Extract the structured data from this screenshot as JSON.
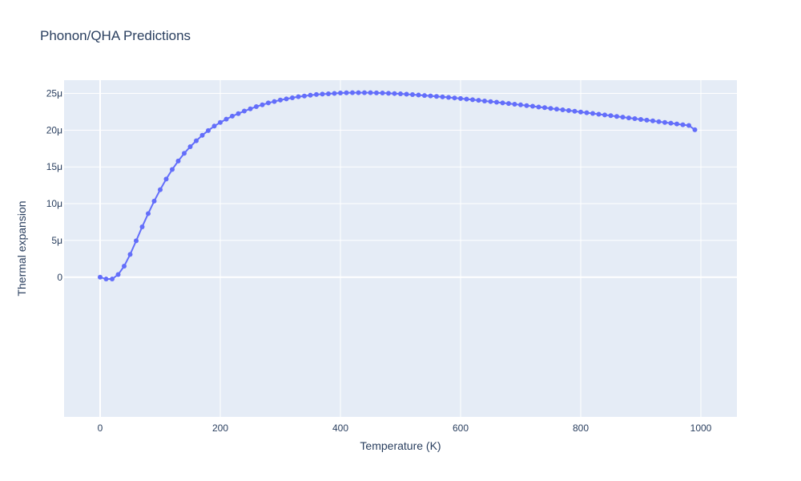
{
  "chart_data": {
    "type": "line",
    "title": "Phonon/QHA Predictions",
    "xlabel": "Temperature (K)",
    "ylabel": "Thermal expansion",
    "xlim": [
      -60,
      1060
    ],
    "ylim": [
      -1.9e-05,
      2.68e-05
    ],
    "x_ticks": [
      0,
      200,
      400,
      600,
      800,
      1000
    ],
    "x_tick_labels": [
      "0",
      "200",
      "400",
      "600",
      "800",
      "1000"
    ],
    "y_ticks": [
      0,
      5e-06,
      1e-05,
      1.5e-05,
      2e-05,
      2.5e-05
    ],
    "y_tick_labels": [
      "0",
      "5μ",
      "10μ",
      "15μ",
      "20μ",
      "25μ"
    ],
    "grid": true,
    "colors": {
      "plot_background": "#e5ecf6",
      "grid": "#ffffff",
      "series": "#636efa",
      "text": "#2a3f5f"
    },
    "series": [
      {
        "x": [
          0,
          10,
          20,
          30,
          40,
          50,
          60,
          70,
          80,
          90,
          100,
          110,
          120,
          130,
          140,
          150,
          160,
          170,
          180,
          190,
          200,
          210,
          220,
          230,
          240,
          250,
          260,
          270,
          280,
          290,
          300,
          310,
          320,
          330,
          340,
          350,
          360,
          370,
          380,
          390,
          400,
          410,
          420,
          430,
          440,
          450,
          460,
          470,
          480,
          490,
          500,
          510,
          520,
          530,
          540,
          550,
          560,
          570,
          580,
          590,
          600,
          610,
          620,
          630,
          640,
          650,
          660,
          670,
          680,
          690,
          700,
          710,
          720,
          730,
          740,
          750,
          760,
          770,
          780,
          790,
          800,
          810,
          820,
          830,
          840,
          850,
          860,
          870,
          880,
          890,
          900,
          910,
          920,
          930,
          940,
          950,
          960,
          970,
          980,
          990
        ],
        "y": [
          0,
          -2.5e-07,
          -2.5e-07,
          3.5e-07,
          1.5e-06,
          3.1e-06,
          4.95e-06,
          6.85e-06,
          8.65e-06,
          1.035e-05,
          1.19e-05,
          1.335e-05,
          1.465e-05,
          1.58e-05,
          1.685e-05,
          1.775e-05,
          1.855e-05,
          1.93e-05,
          1.995e-05,
          2.055e-05,
          2.105e-05,
          2.15e-05,
          2.19e-05,
          2.225e-05,
          2.26e-05,
          2.29e-05,
          2.32e-05,
          2.345e-05,
          2.37e-05,
          2.39e-05,
          2.41e-05,
          2.425e-05,
          2.44e-05,
          2.455e-05,
          2.465e-05,
          2.475e-05,
          2.485e-05,
          2.49e-05,
          2.495e-05,
          2.5e-05,
          2.505e-05,
          2.508e-05,
          2.51e-05,
          2.51e-05,
          2.51e-05,
          2.509e-05,
          2.507e-05,
          2.505e-05,
          2.502e-05,
          2.498e-05,
          2.494e-05,
          2.489e-05,
          2.484e-05,
          2.478e-05,
          2.472e-05,
          2.466e-05,
          2.459e-05,
          2.452e-05,
          2.445e-05,
          2.438e-05,
          2.43e-05,
          2.422e-05,
          2.414e-05,
          2.406e-05,
          2.397e-05,
          2.389e-05,
          2.38e-05,
          2.371e-05,
          2.362e-05,
          2.353e-05,
          2.344e-05,
          2.334e-05,
          2.325e-05,
          2.315e-05,
          2.306e-05,
          2.296e-05,
          2.286e-05,
          2.277e-05,
          2.267e-05,
          2.257e-05,
          2.247e-05,
          2.237e-05,
          2.227e-05,
          2.217e-05,
          2.207e-05,
          2.197e-05,
          2.187e-05,
          2.177e-05,
          2.166e-05,
          2.156e-05,
          2.146e-05,
          2.136e-05,
          2.126e-05,
          2.115e-05,
          2.105e-05,
          2.095e-05,
          2.084e-05,
          2.074e-05,
          2.064e-05,
          2.005e-05
        ]
      }
    ]
  }
}
